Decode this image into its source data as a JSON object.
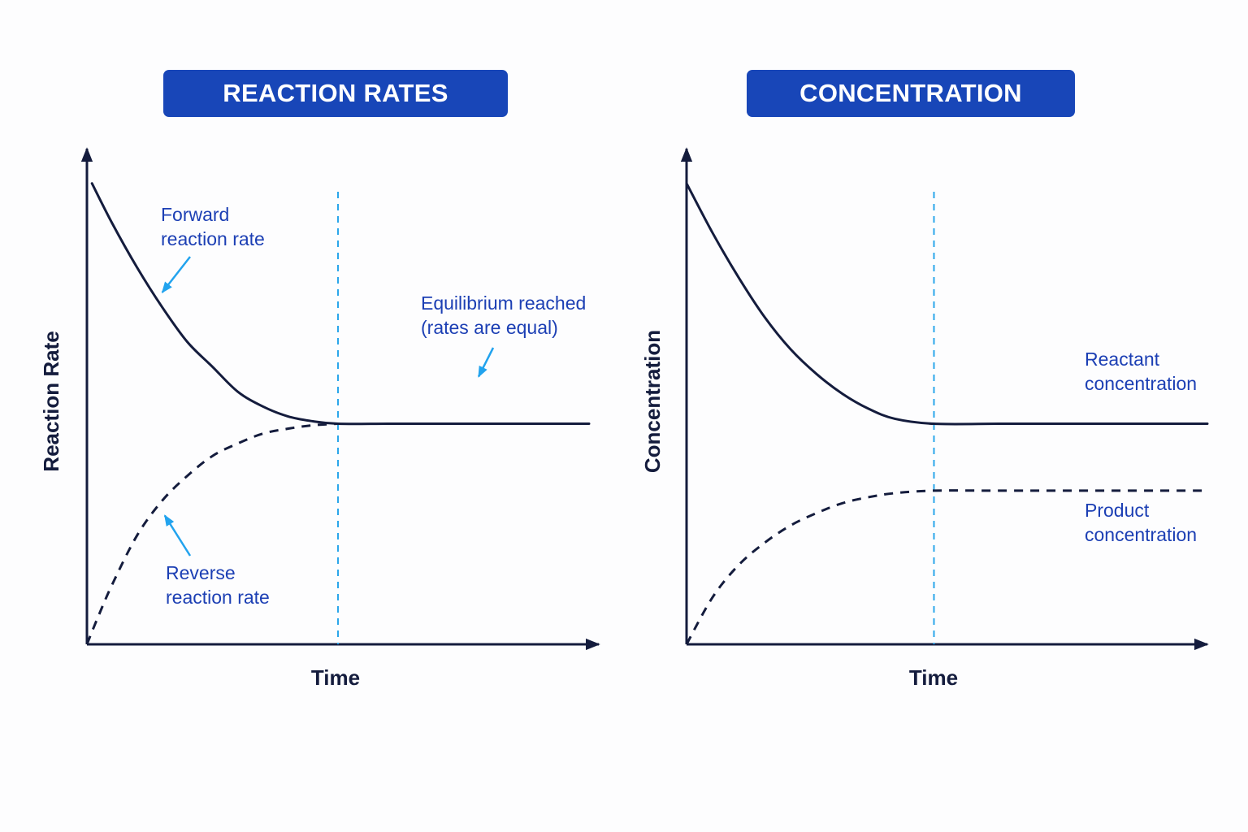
{
  "colors": {
    "title_bg": "#1846b8",
    "title_text": "#ffffff",
    "curve": "#141c3d",
    "annotation_text": "#1c3fb4",
    "annotation_arrow": "#22a3ee",
    "equilibrium_line": "#2ba6ea",
    "axis_label": "#141c3d"
  },
  "chart_data": [
    {
      "type": "line",
      "title": "REACTION RATES",
      "xlabel": "Time",
      "ylabel": "Reaction Rate",
      "xlim": [
        0,
        10
      ],
      "ylim": [
        0,
        10
      ],
      "x_ticks": "none",
      "y_ticks": "none",
      "grid": false,
      "equilibrium_x": 5,
      "series": [
        {
          "name": "Forward reaction rate",
          "style": "solid",
          "x": [
            0.1,
            0.5,
            1,
            1.5,
            2,
            2.5,
            3,
            3.5,
            4,
            4.5,
            5,
            6,
            7,
            8,
            9,
            10
          ],
          "y": [
            9.3,
            8.5,
            7.6,
            6.8,
            6.1,
            5.6,
            5.1,
            4.8,
            4.6,
            4.5,
            4.45,
            4.45,
            4.45,
            4.45,
            4.45,
            4.45
          ]
        },
        {
          "name": "Reverse reaction rate",
          "style": "dashed",
          "x": [
            0,
            0.2,
            0.5,
            1,
            1.5,
            2,
            2.5,
            3,
            3.5,
            4,
            4.5,
            5
          ],
          "y": [
            0,
            0.5,
            1.2,
            2.2,
            2.9,
            3.4,
            3.8,
            4.05,
            4.25,
            4.35,
            4.42,
            4.45
          ]
        }
      ],
      "annotations": [
        {
          "text": [
            "Forward",
            "reaction rate"
          ],
          "points_to": "Forward reaction rate",
          "at_x": 1.5,
          "at_y": 7.1
        },
        {
          "text": [
            "Reverse",
            "reaction rate"
          ],
          "points_to": "Reverse reaction rate",
          "at_x": 1.55,
          "at_y": 2.6
        },
        {
          "text": [
            "Equilibrium reached",
            "(rates are equal)"
          ],
          "points_to": "equilibrium",
          "at_x": 7.8,
          "at_y": 5.4
        }
      ]
    },
    {
      "type": "line",
      "title": "CONCENTRATION",
      "xlabel": "Time",
      "ylabel": "Concentration",
      "xlim": [
        0,
        10
      ],
      "ylim": [
        0,
        10
      ],
      "x_ticks": "none",
      "y_ticks": "none",
      "grid": false,
      "equilibrium_x": 4.75,
      "series": [
        {
          "name": "Reactant concentration",
          "style": "solid",
          "x": [
            0,
            0.5,
            1,
            1.5,
            2,
            2.5,
            3,
            3.5,
            4,
            4.75,
            6,
            7,
            8,
            9,
            10
          ],
          "y": [
            9.3,
            8.3,
            7.4,
            6.6,
            5.95,
            5.45,
            5.05,
            4.75,
            4.55,
            4.45,
            4.45,
            4.45,
            4.45,
            4.45,
            4.45
          ]
        },
        {
          "name": "Product concentration",
          "style": "dashed",
          "x": [
            0,
            0.5,
            1,
            1.5,
            2,
            2.5,
            3,
            3.5,
            4,
            4.75,
            6,
            7,
            8,
            9,
            10
          ],
          "y": [
            0,
            0.95,
            1.6,
            2.05,
            2.4,
            2.65,
            2.85,
            2.97,
            3.05,
            3.1,
            3.1,
            3.1,
            3.1,
            3.1,
            3.1
          ]
        }
      ],
      "annotations": [
        {
          "text": [
            "Reactant",
            "concentration"
          ],
          "points_to": "Reactant concentration",
          "legend": "right"
        },
        {
          "text": [
            "Product",
            "concentration"
          ],
          "points_to": "Product concentration",
          "legend": "right"
        }
      ]
    }
  ]
}
